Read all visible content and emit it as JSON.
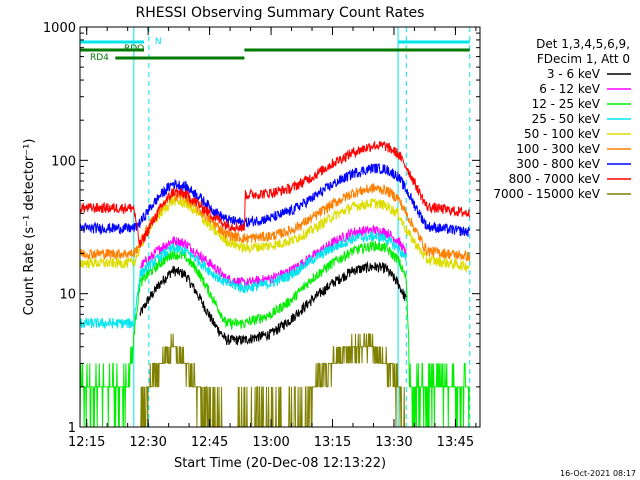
{
  "chart_data": {
    "type": "line",
    "title": "RHESSI Observing Summary Count Rates",
    "xlabel": "Start Time (20-Dec-08 12:13:22)",
    "ylabel": "Count Rate (s⁻¹ detector⁻¹)",
    "xlim": [
      "12:13:22",
      "13:51:00"
    ],
    "ylim": [
      1,
      1000
    ],
    "yscale": "log",
    "x_ticks": [
      "12:15",
      "12:30",
      "12:45",
      "13:00",
      "13:15",
      "13:30",
      "13:45"
    ],
    "y_ticks": [
      "1",
      "10",
      "100",
      "1000"
    ],
    "footer_timestamp": "16-Oct-2021 08:17",
    "legend": {
      "position": "right",
      "header_lines": [
        "Det 1,3,4,5,6,9,",
        "FDecim 1, Att 0"
      ]
    },
    "time_markers": {
      "solid": [
        "12:26:30",
        "13:31:00"
      ],
      "dashed": [
        "12:30:10",
        "13:33:00",
        "13:48:30"
      ]
    },
    "status_bars": [
      {
        "label": "N",
        "color": "#00e5ee",
        "ranges": [
          [
            "12:13:22",
            "12:29:00"
          ],
          [
            "13:31:00",
            "13:48:30"
          ]
        ]
      },
      {
        "label": "RDO",
        "color": "#007a00",
        "ranges": [
          [
            "12:13:22",
            "12:29:00"
          ],
          [
            "12:53:30",
            "13:48:30"
          ]
        ]
      },
      {
        "label": "RD4",
        "color": "#007a00",
        "ranges": [
          [
            "12:22:00",
            "12:53:30"
          ]
        ]
      }
    ],
    "gaps": [
      [
        "12:26:30",
        "12:30:10"
      ],
      [
        "13:31:00",
        "13:33:00"
      ]
    ],
    "series": [
      {
        "name": "3 - 6 keV",
        "color": "#000000",
        "points": [
          [
            "12:28:00",
            7
          ],
          [
            "12:30:00",
            9
          ],
          [
            "12:33:00",
            12
          ],
          [
            "12:36:00",
            15
          ],
          [
            "12:39:00",
            14
          ],
          [
            "12:42:00",
            10
          ],
          [
            "12:46:00",
            6
          ],
          [
            "12:49:00",
            4.5
          ],
          [
            "12:53:30",
            4.5
          ],
          [
            "13:00:00",
            5
          ],
          [
            "13:05:00",
            6.5
          ],
          [
            "13:10:00",
            9
          ],
          [
            "13:15:00",
            12
          ],
          [
            "13:20:00",
            15
          ],
          [
            "13:25:00",
            16
          ],
          [
            "13:28:00",
            15.5
          ],
          [
            "13:31:00",
            12
          ],
          [
            "13:33:00",
            9
          ]
        ]
      },
      {
        "name": "6 - 12 keV",
        "color": "#ff00ff",
        "points": [
          [
            "12:28:00",
            16
          ],
          [
            "12:30:00",
            18
          ],
          [
            "12:33:00",
            22
          ],
          [
            "12:36:00",
            25
          ],
          [
            "12:39:00",
            24
          ],
          [
            "12:42:00",
            20
          ],
          [
            "12:46:00",
            16
          ],
          [
            "12:49:00",
            13
          ],
          [
            "12:53:30",
            12
          ],
          [
            "13:00:00",
            13
          ],
          [
            "13:05:00",
            15
          ],
          [
            "13:10:00",
            19
          ],
          [
            "13:15:00",
            24
          ],
          [
            "13:20:00",
            29
          ],
          [
            "13:25:00",
            30
          ],
          [
            "13:28:00",
            29
          ],
          [
            "13:31:00",
            25
          ],
          [
            "13:33:00",
            20
          ]
        ]
      },
      {
        "name": "12 - 25 keV",
        "color": "#00ee00",
        "points": [
          [
            "12:13:22",
            2
          ],
          [
            "12:25:00",
            2
          ],
          [
            "12:28:00",
            12
          ],
          [
            "12:30:00",
            14
          ],
          [
            "12:33:00",
            17
          ],
          [
            "12:36:00",
            20
          ],
          [
            "12:39:00",
            19
          ],
          [
            "12:42:00",
            15
          ],
          [
            "12:46:00",
            9
          ],
          [
            "12:49:00",
            6
          ],
          [
            "12:53:30",
            6
          ],
          [
            "13:00:00",
            7
          ],
          [
            "13:05:00",
            9
          ],
          [
            "13:10:00",
            13
          ],
          [
            "13:15:00",
            17
          ],
          [
            "13:20:00",
            21
          ],
          [
            "13:25:00",
            23
          ],
          [
            "13:28:00",
            22
          ],
          [
            "13:31:00",
            18
          ],
          [
            "13:33:00",
            13
          ],
          [
            "13:34:00",
            2
          ],
          [
            "13:48:30",
            2
          ]
        ]
      },
      {
        "name": "25 - 50 keV",
        "color": "#00e5ee",
        "points": [
          [
            "12:13:22",
            6
          ],
          [
            "12:26:30",
            6
          ],
          [
            "12:28:00",
            14
          ],
          [
            "12:30:00",
            16
          ],
          [
            "12:33:00",
            19
          ],
          [
            "12:36:00",
            22
          ],
          [
            "12:39:00",
            21
          ],
          [
            "12:42:00",
            18
          ],
          [
            "12:46:00",
            14
          ],
          [
            "12:49:00",
            12
          ],
          [
            "12:53:30",
            11
          ],
          [
            "13:00:00",
            12
          ],
          [
            "13:05:00",
            14
          ],
          [
            "13:10:00",
            18
          ],
          [
            "13:15:00",
            22
          ],
          [
            "13:20:00",
            26
          ],
          [
            "13:25:00",
            27
          ],
          [
            "13:28:00",
            26
          ],
          [
            "13:31:00",
            22
          ],
          [
            "13:33:00",
            18
          ]
        ]
      },
      {
        "name": "50 - 100 keV",
        "color": "#dddd00",
        "points": [
          [
            "12:13:22",
            17
          ],
          [
            "12:26:30",
            17
          ],
          [
            "12:28:00",
            22
          ],
          [
            "12:30:00",
            30
          ],
          [
            "12:33:00",
            40
          ],
          [
            "12:36:00",
            50
          ],
          [
            "12:39:00",
            48
          ],
          [
            "12:42:00",
            40
          ],
          [
            "12:46:00",
            30
          ],
          [
            "12:49:00",
            25
          ],
          [
            "12:53:30",
            22
          ],
          [
            "13:00:00",
            23
          ],
          [
            "13:05:00",
            25
          ],
          [
            "13:10:00",
            30
          ],
          [
            "13:15:00",
            38
          ],
          [
            "13:20:00",
            45
          ],
          [
            "13:25:00",
            48
          ],
          [
            "13:28:00",
            46
          ],
          [
            "13:31:00",
            40
          ],
          [
            "13:33:00",
            30
          ],
          [
            "13:38:00",
            18
          ],
          [
            "13:48:30",
            16
          ]
        ]
      },
      {
        "name": "100 - 300 keV",
        "color": "#ff7f00",
        "points": [
          [
            "12:13:22",
            20
          ],
          [
            "12:26:30",
            20
          ],
          [
            "12:28:00",
            24
          ],
          [
            "12:30:00",
            32
          ],
          [
            "12:33:00",
            44
          ],
          [
            "12:36:00",
            55
          ],
          [
            "12:39:00",
            53
          ],
          [
            "12:42:00",
            44
          ],
          [
            "12:46:00",
            34
          ],
          [
            "12:49:00",
            28
          ],
          [
            "12:53:30",
            26
          ],
          [
            "13:00:00",
            27
          ],
          [
            "13:05:00",
            30
          ],
          [
            "13:10:00",
            37
          ],
          [
            "13:15:00",
            47
          ],
          [
            "13:20:00",
            57
          ],
          [
            "13:25:00",
            62
          ],
          [
            "13:28:00",
            60
          ],
          [
            "13:31:00",
            52
          ],
          [
            "13:33:00",
            40
          ],
          [
            "13:38:00",
            21
          ],
          [
            "13:48:30",
            19
          ]
        ]
      },
      {
        "name": "300 - 800 keV",
        "color": "#0000ff",
        "points": [
          [
            "12:13:22",
            31
          ],
          [
            "12:26:30",
            31
          ],
          [
            "12:28:00",
            34
          ],
          [
            "12:30:00",
            42
          ],
          [
            "12:33:00",
            55
          ],
          [
            "12:36:00",
            67
          ],
          [
            "12:39:00",
            64
          ],
          [
            "12:42:00",
            55
          ],
          [
            "12:46:00",
            42
          ],
          [
            "12:49:00",
            36
          ],
          [
            "12:53:30",
            34
          ],
          [
            "13:00:00",
            37
          ],
          [
            "13:05:00",
            42
          ],
          [
            "13:10:00",
            52
          ],
          [
            "13:15:00",
            66
          ],
          [
            "13:20:00",
            80
          ],
          [
            "13:25:00",
            88
          ],
          [
            "13:28:00",
            86
          ],
          [
            "13:31:00",
            76
          ],
          [
            "13:33:00",
            60
          ],
          [
            "13:38:00",
            32
          ],
          [
            "13:48:30",
            29
          ]
        ]
      },
      {
        "name": "800 - 7000 keV",
        "color": "#ff0000",
        "points": [
          [
            "12:13:22",
            44
          ],
          [
            "12:26:30",
            44
          ],
          [
            "12:28:00",
            23
          ],
          [
            "12:30:00",
            30
          ],
          [
            "12:33:00",
            44
          ],
          [
            "12:36:00",
            58
          ],
          [
            "12:39:00",
            56
          ],
          [
            "12:42:00",
            48
          ],
          [
            "12:46:00",
            38
          ],
          [
            "12:49:00",
            33
          ],
          [
            "12:53:30",
            31
          ],
          [
            "12:53:40",
            55
          ],
          [
            "13:00:00",
            57
          ],
          [
            "13:05:00",
            62
          ],
          [
            "13:10:00",
            75
          ],
          [
            "13:15:00",
            95
          ],
          [
            "13:20:00",
            115
          ],
          [
            "13:25:00",
            130
          ],
          [
            "13:28:00",
            128
          ],
          [
            "13:31:00",
            112
          ],
          [
            "13:33:00",
            90
          ],
          [
            "13:38:00",
            45
          ],
          [
            "13:48:30",
            40
          ]
        ]
      },
      {
        "name": "7000 - 15000 keV",
        "color": "#808000",
        "points": [
          [
            "12:28:00",
            1
          ],
          [
            "12:30:10",
            2
          ],
          [
            "12:33:00",
            3
          ],
          [
            "12:36:00",
            4
          ],
          [
            "12:39:00",
            3
          ],
          [
            "12:42:00",
            2
          ],
          [
            "12:45:00",
            1
          ],
          [
            "13:06:00",
            1
          ],
          [
            "13:10:00",
            2
          ],
          [
            "13:15:00",
            3
          ],
          [
            "13:20:00",
            4
          ],
          [
            "13:25:00",
            4
          ],
          [
            "13:28:00",
            3
          ],
          [
            "13:31:00",
            2
          ],
          [
            "13:33:00",
            1
          ]
        ]
      }
    ]
  }
}
